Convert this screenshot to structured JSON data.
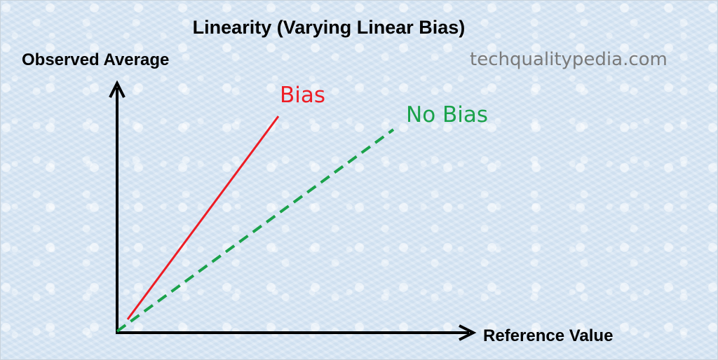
{
  "title": "Linearity (Varying Linear Bias)",
  "y_axis_label": "Observed Average",
  "x_axis_label": "Reference Value",
  "watermark": "techqualitypedia.com",
  "lines": {
    "bias": {
      "label": "Bias",
      "color": "#ee1c24",
      "style": "solid"
    },
    "no_bias": {
      "label": "No Bias",
      "color": "#1aa24a",
      "style": "dashed"
    }
  },
  "axis_color": "#000000"
}
